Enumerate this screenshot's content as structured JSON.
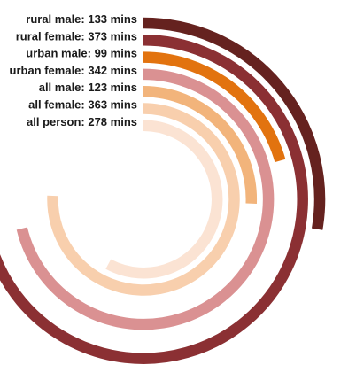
{
  "chart_data": {
    "type": "radial-bar",
    "title": "",
    "unit": "mins",
    "full_scale_minutes": 480,
    "start_angle": "top",
    "direction": "clockwise",
    "series": [
      {
        "name": "rural male",
        "value": 133,
        "label": "rural male: 133 mins",
        "color": "#65221f"
      },
      {
        "name": "rural female",
        "value": 373,
        "label": "rural female: 373 mins",
        "color": "#8b3033"
      },
      {
        "name": "urban male",
        "value": 99,
        "label": "urban male: 99 mins",
        "color": "#e2730f"
      },
      {
        "name": "urban female",
        "value": 342,
        "label": "urban female: 342 mins",
        "color": "#da9192"
      },
      {
        "name": "all male",
        "value": 123,
        "label": "all male: 123 mins",
        "color": "#f2b47b"
      },
      {
        "name": "all female",
        "value": 363,
        "label": "all female: 363 mins",
        "color": "#f8cfad"
      },
      {
        "name": "all person",
        "value": 278,
        "label": "all person: 278 mins",
        "color": "#fbe3d3"
      }
    ]
  }
}
